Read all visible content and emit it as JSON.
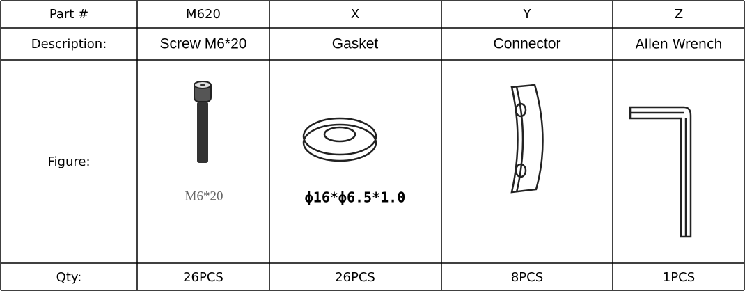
{
  "table": {
    "header": [
      "Part #",
      "M620",
      "X",
      "Y",
      "Z"
    ],
    "description": [
      "Description:",
      "Screw M6*20",
      "Gasket",
      "Connector",
      "Allen Wrench"
    ],
    "figure_label": "Figure:",
    "figure_captions": [
      "M6*20",
      "ϕ16*ϕ6.5*1.0"
    ],
    "qty": [
      "Qty:",
      "26PCS",
      "26PCS",
      "8PCS",
      "1PCS"
    ]
  }
}
